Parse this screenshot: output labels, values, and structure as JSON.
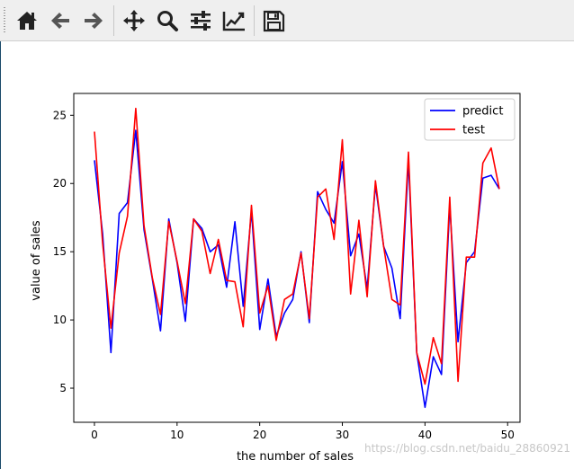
{
  "toolbar": {
    "buttons": [
      {
        "name": "home-button",
        "icon": "home-icon"
      },
      {
        "name": "back-button",
        "icon": "arrow-left-icon"
      },
      {
        "name": "forward-button",
        "icon": "arrow-right-icon"
      },
      {
        "name": "pan-button",
        "icon": "move-icon"
      },
      {
        "name": "zoom-button",
        "icon": "magnifier-icon"
      },
      {
        "name": "configure-subplots-button",
        "icon": "sliders-icon"
      },
      {
        "name": "edit-axis-button",
        "icon": "line-chart-icon"
      },
      {
        "name": "save-button",
        "icon": "floppy-disk-icon"
      }
    ],
    "icon_color": "#222222"
  },
  "watermark": "https://blog.csdn.net/baidu_28860921",
  "chart_data": {
    "type": "line",
    "xlabel": "the number of sales",
    "ylabel": "value of  sales",
    "xlim": [
      -2.5,
      51.5
    ],
    "ylim": [
      2.5,
      26.6
    ],
    "xticks": [
      0,
      10,
      20,
      30,
      40,
      50
    ],
    "yticks": [
      5,
      10,
      15,
      20,
      25
    ],
    "legend_position": "top-right",
    "x": [
      0,
      1,
      2,
      3,
      4,
      5,
      6,
      7,
      8,
      9,
      10,
      11,
      12,
      13,
      14,
      15,
      16,
      17,
      18,
      19,
      20,
      21,
      22,
      23,
      24,
      25,
      26,
      27,
      28,
      29,
      30,
      31,
      32,
      33,
      34,
      35,
      36,
      37,
      38,
      39,
      40,
      41,
      42,
      43,
      44,
      45,
      46,
      47,
      48,
      49
    ],
    "series": [
      {
        "name": "predict",
        "color": "#0000ff",
        "values": [
          21.7,
          16.3,
          7.6,
          17.8,
          18.6,
          23.9,
          16.6,
          13.0,
          9.2,
          17.4,
          14.2,
          9.9,
          17.4,
          16.7,
          15.0,
          15.5,
          12.4,
          17.2,
          11.0,
          18.0,
          9.3,
          13.0,
          8.8,
          10.5,
          11.5,
          15.0,
          9.8,
          19.4,
          18.1,
          17.1,
          21.6,
          14.7,
          16.3,
          12.3,
          19.9,
          15.4,
          13.8,
          10.1,
          21.7,
          7.6,
          3.6,
          7.3,
          6.0,
          18.4,
          8.4,
          14.2,
          15.0,
          20.4,
          20.6,
          19.6
        ]
      },
      {
        "name": "test",
        "color": "#ff0000",
        "values": [
          23.8,
          15.6,
          9.4,
          14.9,
          17.6,
          25.5,
          16.9,
          13.1,
          10.4,
          17.2,
          14.3,
          11.2,
          17.4,
          16.5,
          13.4,
          15.9,
          12.9,
          12.8,
          9.5,
          18.4,
          10.5,
          12.5,
          8.5,
          11.5,
          11.9,
          14.9,
          10.1,
          19.0,
          19.6,
          15.9,
          23.2,
          11.9,
          17.3,
          11.7,
          20.2,
          15.4,
          11.5,
          11.1,
          22.3,
          7.6,
          5.3,
          8.7,
          6.8,
          19.0,
          5.5,
          14.6,
          14.6,
          21.5,
          22.6,
          19.6
        ]
      }
    ]
  }
}
